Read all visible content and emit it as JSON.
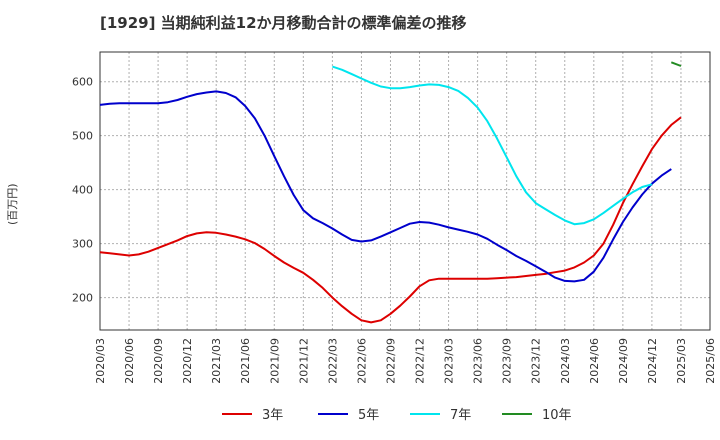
{
  "chart_data": {
    "type": "line",
    "title": "[1929]  当期純利益12か月移動合計の標準偏差の推移",
    "ylabel": "(百万円)",
    "xlabel": "",
    "ylim": [
      140,
      655
    ],
    "yticks": [
      200,
      300,
      400,
      500,
      600
    ],
    "grid": true,
    "legend_position": "bottom",
    "x_tick_labels": [
      "2020/03",
      "2020/06",
      "2020/09",
      "2020/12",
      "2021/03",
      "2021/06",
      "2021/09",
      "2021/12",
      "2022/03",
      "2022/06",
      "2022/09",
      "2022/12",
      "2023/03",
      "2023/06",
      "2023/09",
      "2023/12",
      "2024/03",
      "2024/06",
      "2024/09",
      "2024/12",
      "2025/03",
      "2025/06"
    ],
    "x": [
      "2020/03",
      "2020/04",
      "2020/05",
      "2020/06",
      "2020/07",
      "2020/08",
      "2020/09",
      "2020/10",
      "2020/11",
      "2020/12",
      "2021/01",
      "2021/02",
      "2021/03",
      "2021/04",
      "2021/05",
      "2021/06",
      "2021/07",
      "2021/08",
      "2021/09",
      "2021/10",
      "2021/11",
      "2021/12",
      "2022/01",
      "2022/02",
      "2022/03",
      "2022/04",
      "2022/05",
      "2022/06",
      "2022/07",
      "2022/08",
      "2022/09",
      "2022/10",
      "2022/11",
      "2022/12",
      "2023/01",
      "2023/02",
      "2023/03",
      "2023/04",
      "2023/05",
      "2023/06",
      "2023/07",
      "2023/08",
      "2023/09",
      "2023/10",
      "2023/11",
      "2023/12",
      "2024/01",
      "2024/02",
      "2024/03",
      "2024/04",
      "2024/05",
      "2024/06",
      "2024/07",
      "2024/08",
      "2024/09",
      "2024/10",
      "2024/11",
      "2024/12",
      "2025/01",
      "2025/02",
      "2025/03"
    ],
    "series": [
      {
        "name": "3年",
        "color": "#dd0000",
        "values": [
          284,
          282,
          280,
          278,
          280,
          285,
          292,
          299,
          306,
          314,
          319,
          321,
          320,
          317,
          313,
          308,
          301,
          290,
          277,
          265,
          255,
          246,
          233,
          218,
          200,
          184,
          170,
          158,
          154,
          158,
          170,
          185,
          202,
          221,
          232,
          235,
          235,
          235,
          235,
          235,
          235,
          236,
          237,
          238,
          240,
          242,
          244,
          247,
          250,
          256,
          265,
          278,
          300,
          335,
          375,
          410,
          443,
          475,
          500,
          520,
          534
        ]
      },
      {
        "name": "5年",
        "color": "#0000cc",
        "values": [
          557,
          559,
          560,
          560,
          560,
          560,
          560,
          562,
          566,
          572,
          577,
          580,
          582,
          579,
          571,
          555,
          532,
          500,
          462,
          425,
          390,
          362,
          347,
          338,
          328,
          317,
          307,
          304,
          306,
          313,
          321,
          329,
          337,
          340,
          339,
          335,
          330,
          326,
          322,
          317,
          309,
          298,
          288,
          277,
          268,
          258,
          248,
          237,
          231,
          230,
          233,
          248,
          274,
          308,
          340,
          367,
          391,
          411,
          426,
          438,
          null
        ]
      },
      {
        "name": "7年",
        "color": "#00e5ee",
        "values": [
          null,
          null,
          null,
          null,
          null,
          null,
          null,
          null,
          null,
          null,
          null,
          null,
          null,
          null,
          null,
          null,
          null,
          null,
          null,
          null,
          null,
          null,
          null,
          null,
          628,
          622,
          614,
          606,
          598,
          591,
          588,
          588,
          590,
          593,
          595,
          594,
          590,
          583,
          570,
          552,
          527,
          495,
          460,
          425,
          395,
          375,
          364,
          353,
          343,
          336,
          338,
          345,
          357,
          370,
          383,
          395,
          405,
          410,
          null,
          null,
          null
        ]
      },
      {
        "name": "10年",
        "color": "#228b22",
        "values": [
          null,
          null,
          null,
          null,
          null,
          null,
          null,
          null,
          null,
          null,
          null,
          null,
          null,
          null,
          null,
          null,
          null,
          null,
          null,
          null,
          null,
          null,
          null,
          null,
          null,
          null,
          null,
          null,
          null,
          null,
          null,
          null,
          null,
          null,
          null,
          null,
          null,
          null,
          null,
          null,
          null,
          null,
          null,
          null,
          null,
          null,
          null,
          null,
          null,
          null,
          null,
          null,
          null,
          null,
          null,
          null,
          null,
          null,
          null,
          636,
          629
        ]
      }
    ]
  }
}
